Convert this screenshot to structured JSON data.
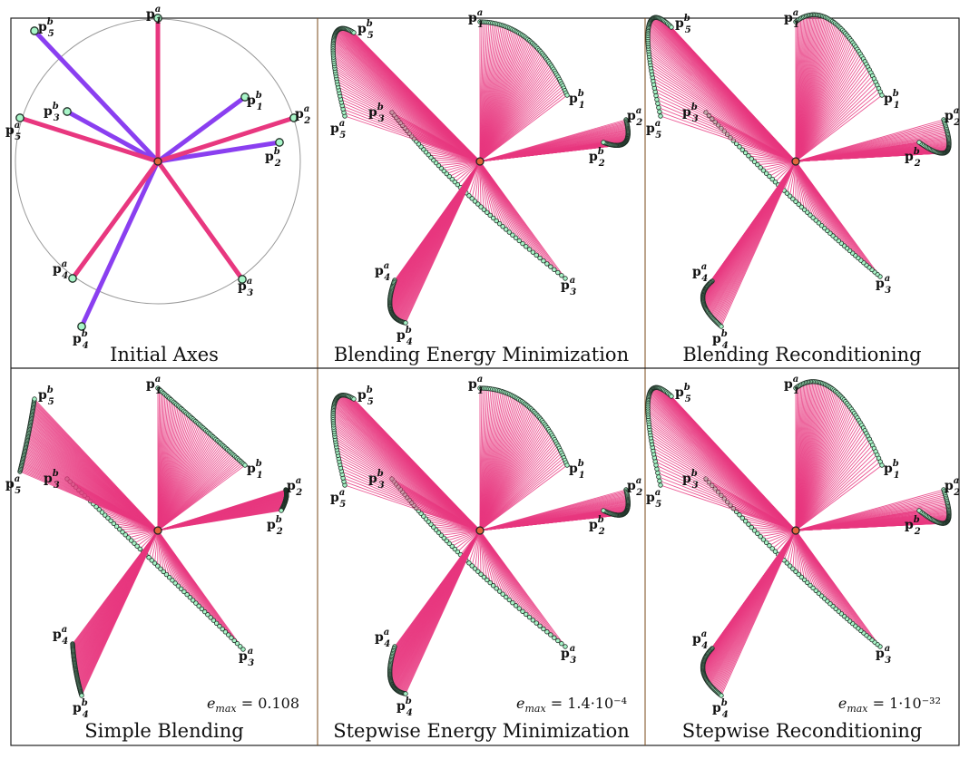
{
  "colors": {
    "axis_a": "#e8377f",
    "axis_b": "#8a3ff0",
    "fan": "#e8377f",
    "marker_fill": "#a8f5c8",
    "marker_stroke": "#1f2f26",
    "center_fill": "#e0673a",
    "circle": "#9a9a9a",
    "border": "#222222"
  },
  "panels": [
    {
      "id": "initial",
      "title": "Initial Axes",
      "error_text": "",
      "error_value": ""
    },
    {
      "id": "blend-energy",
      "title": "Blending Energy Minimization",
      "error_text": "",
      "error_value": ""
    },
    {
      "id": "blend-recond",
      "title": "Blending Reconditioning",
      "error_text": "",
      "error_value": ""
    },
    {
      "id": "simple",
      "title": "Simple Blending",
      "error_text": "e",
      "error_sub": "max",
      "error_value": " = 0.108"
    },
    {
      "id": "step-energy",
      "title": "Stepwise Energy Minimization",
      "error_text": "e",
      "error_sub": "max",
      "error_value": " = 1.4·10⁻⁴"
    },
    {
      "id": "step-recond",
      "title": "Stepwise Reconditioning",
      "error_text": "e",
      "error_sub": "max",
      "error_value": " = 1·10⁻³²"
    }
  ],
  "point_labels": {
    "base": "p",
    "a": "a",
    "b": "b",
    "indices": [
      "1",
      "2",
      "3",
      "4",
      "5"
    ]
  }
}
